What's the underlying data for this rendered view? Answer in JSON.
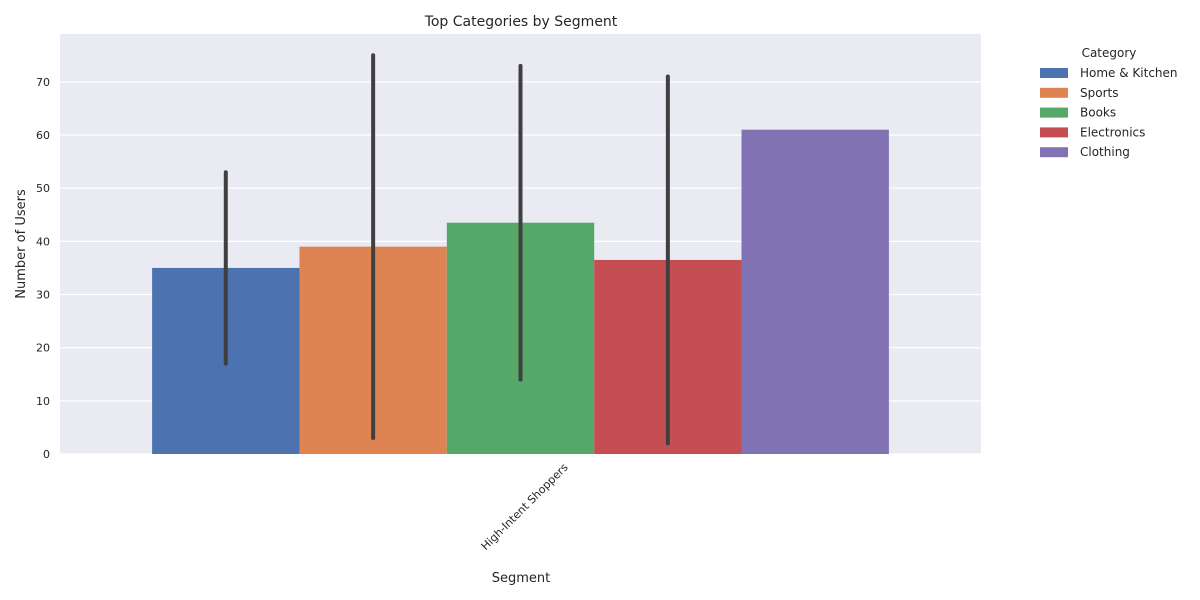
{
  "chart_data": {
    "type": "bar",
    "title": "Top Categories by Segment",
    "xlabel": "Segment",
    "ylabel": "Number of Users",
    "categories": [
      "High-Intent Shoppers"
    ],
    "ylim": [
      0,
      79
    ],
    "yticks": [
      0,
      10,
      20,
      30,
      40,
      50,
      60,
      70
    ],
    "grid": true,
    "legend": {
      "title": "Category",
      "placement": "outside-right"
    },
    "series": [
      {
        "name": "Home & Kitchen",
        "color": "#4C72B0",
        "values": [
          35
        ],
        "error_low": [
          17
        ],
        "error_high": [
          53
        ]
      },
      {
        "name": "Sports",
        "color": "#DD8452",
        "values": [
          39
        ],
        "error_low": [
          3
        ],
        "error_high": [
          75
        ]
      },
      {
        "name": "Books",
        "color": "#55A868",
        "values": [
          43.5
        ],
        "error_low": [
          14
        ],
        "error_high": [
          73
        ]
      },
      {
        "name": "Electronics",
        "color": "#C44E52",
        "values": [
          36.5
        ],
        "error_low": [
          2
        ],
        "error_high": [
          71
        ]
      },
      {
        "name": "Clothing",
        "color": "#8172B3",
        "values": [
          61
        ],
        "error_low": [
          null
        ],
        "error_high": [
          null
        ]
      }
    ]
  }
}
